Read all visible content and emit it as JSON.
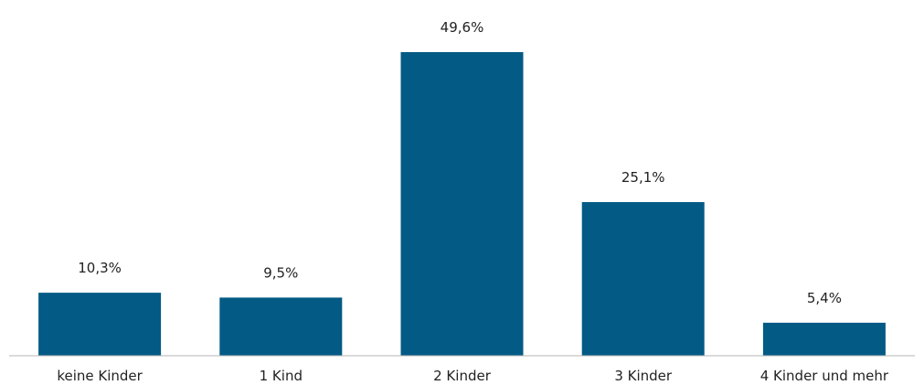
{
  "chart_data": {
    "type": "bar",
    "categories": [
      "keine Kinder",
      "1 Kind",
      "2 Kinder",
      "3 Kinder",
      "4 Kinder und mehr"
    ],
    "values": [
      10.3,
      9.5,
      49.6,
      25.1,
      5.4
    ],
    "value_labels": [
      "10,3%",
      "9,5%",
      "49,6%",
      "25,1%",
      "5,4%"
    ],
    "title": "",
    "xlabel": "",
    "ylabel": "",
    "ylim": [
      0,
      50
    ],
    "grid": false,
    "bar_color": "#035a85"
  }
}
